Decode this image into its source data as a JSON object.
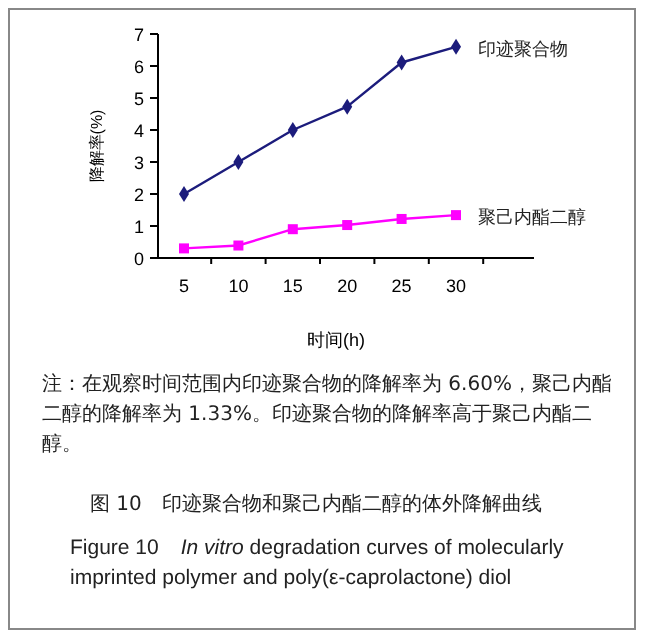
{
  "chart_data": {
    "type": "line",
    "xlabel": "时间(h)",
    "ylabel": "降解率(%)",
    "categories": [
      "5",
      "10",
      "15",
      "20",
      "25",
      "30"
    ],
    "ylim": [
      0,
      7
    ],
    "yticks": [
      0,
      1,
      2,
      3,
      4,
      5,
      6,
      7
    ],
    "series": [
      {
        "name": "印迹聚合物",
        "color": "#1c1c7c",
        "marker": "diamond",
        "values": [
          2.0,
          3.0,
          4.0,
          4.73,
          6.11,
          6.6
        ]
      },
      {
        "name": "聚己内酯二醇",
        "color": "#ff00ff",
        "marker": "square",
        "values": [
          0.3,
          0.39,
          0.9,
          1.03,
          1.22,
          1.34
        ]
      }
    ],
    "annotations": [
      "注：在观察时间范围内印迹聚合物的降解率为 6.60%，聚己内酯二醇的降解率为 1.33%。印迹聚合物的降解率高于聚己内酯二醇。",
      "图 10　印迹聚合物和聚己内酯二醇的体外降解曲线",
      "Figure 10　*In vitro* degradation curves of molecularly imprinted polymer and poly(ε-caprolactone) diol"
    ]
  }
}
